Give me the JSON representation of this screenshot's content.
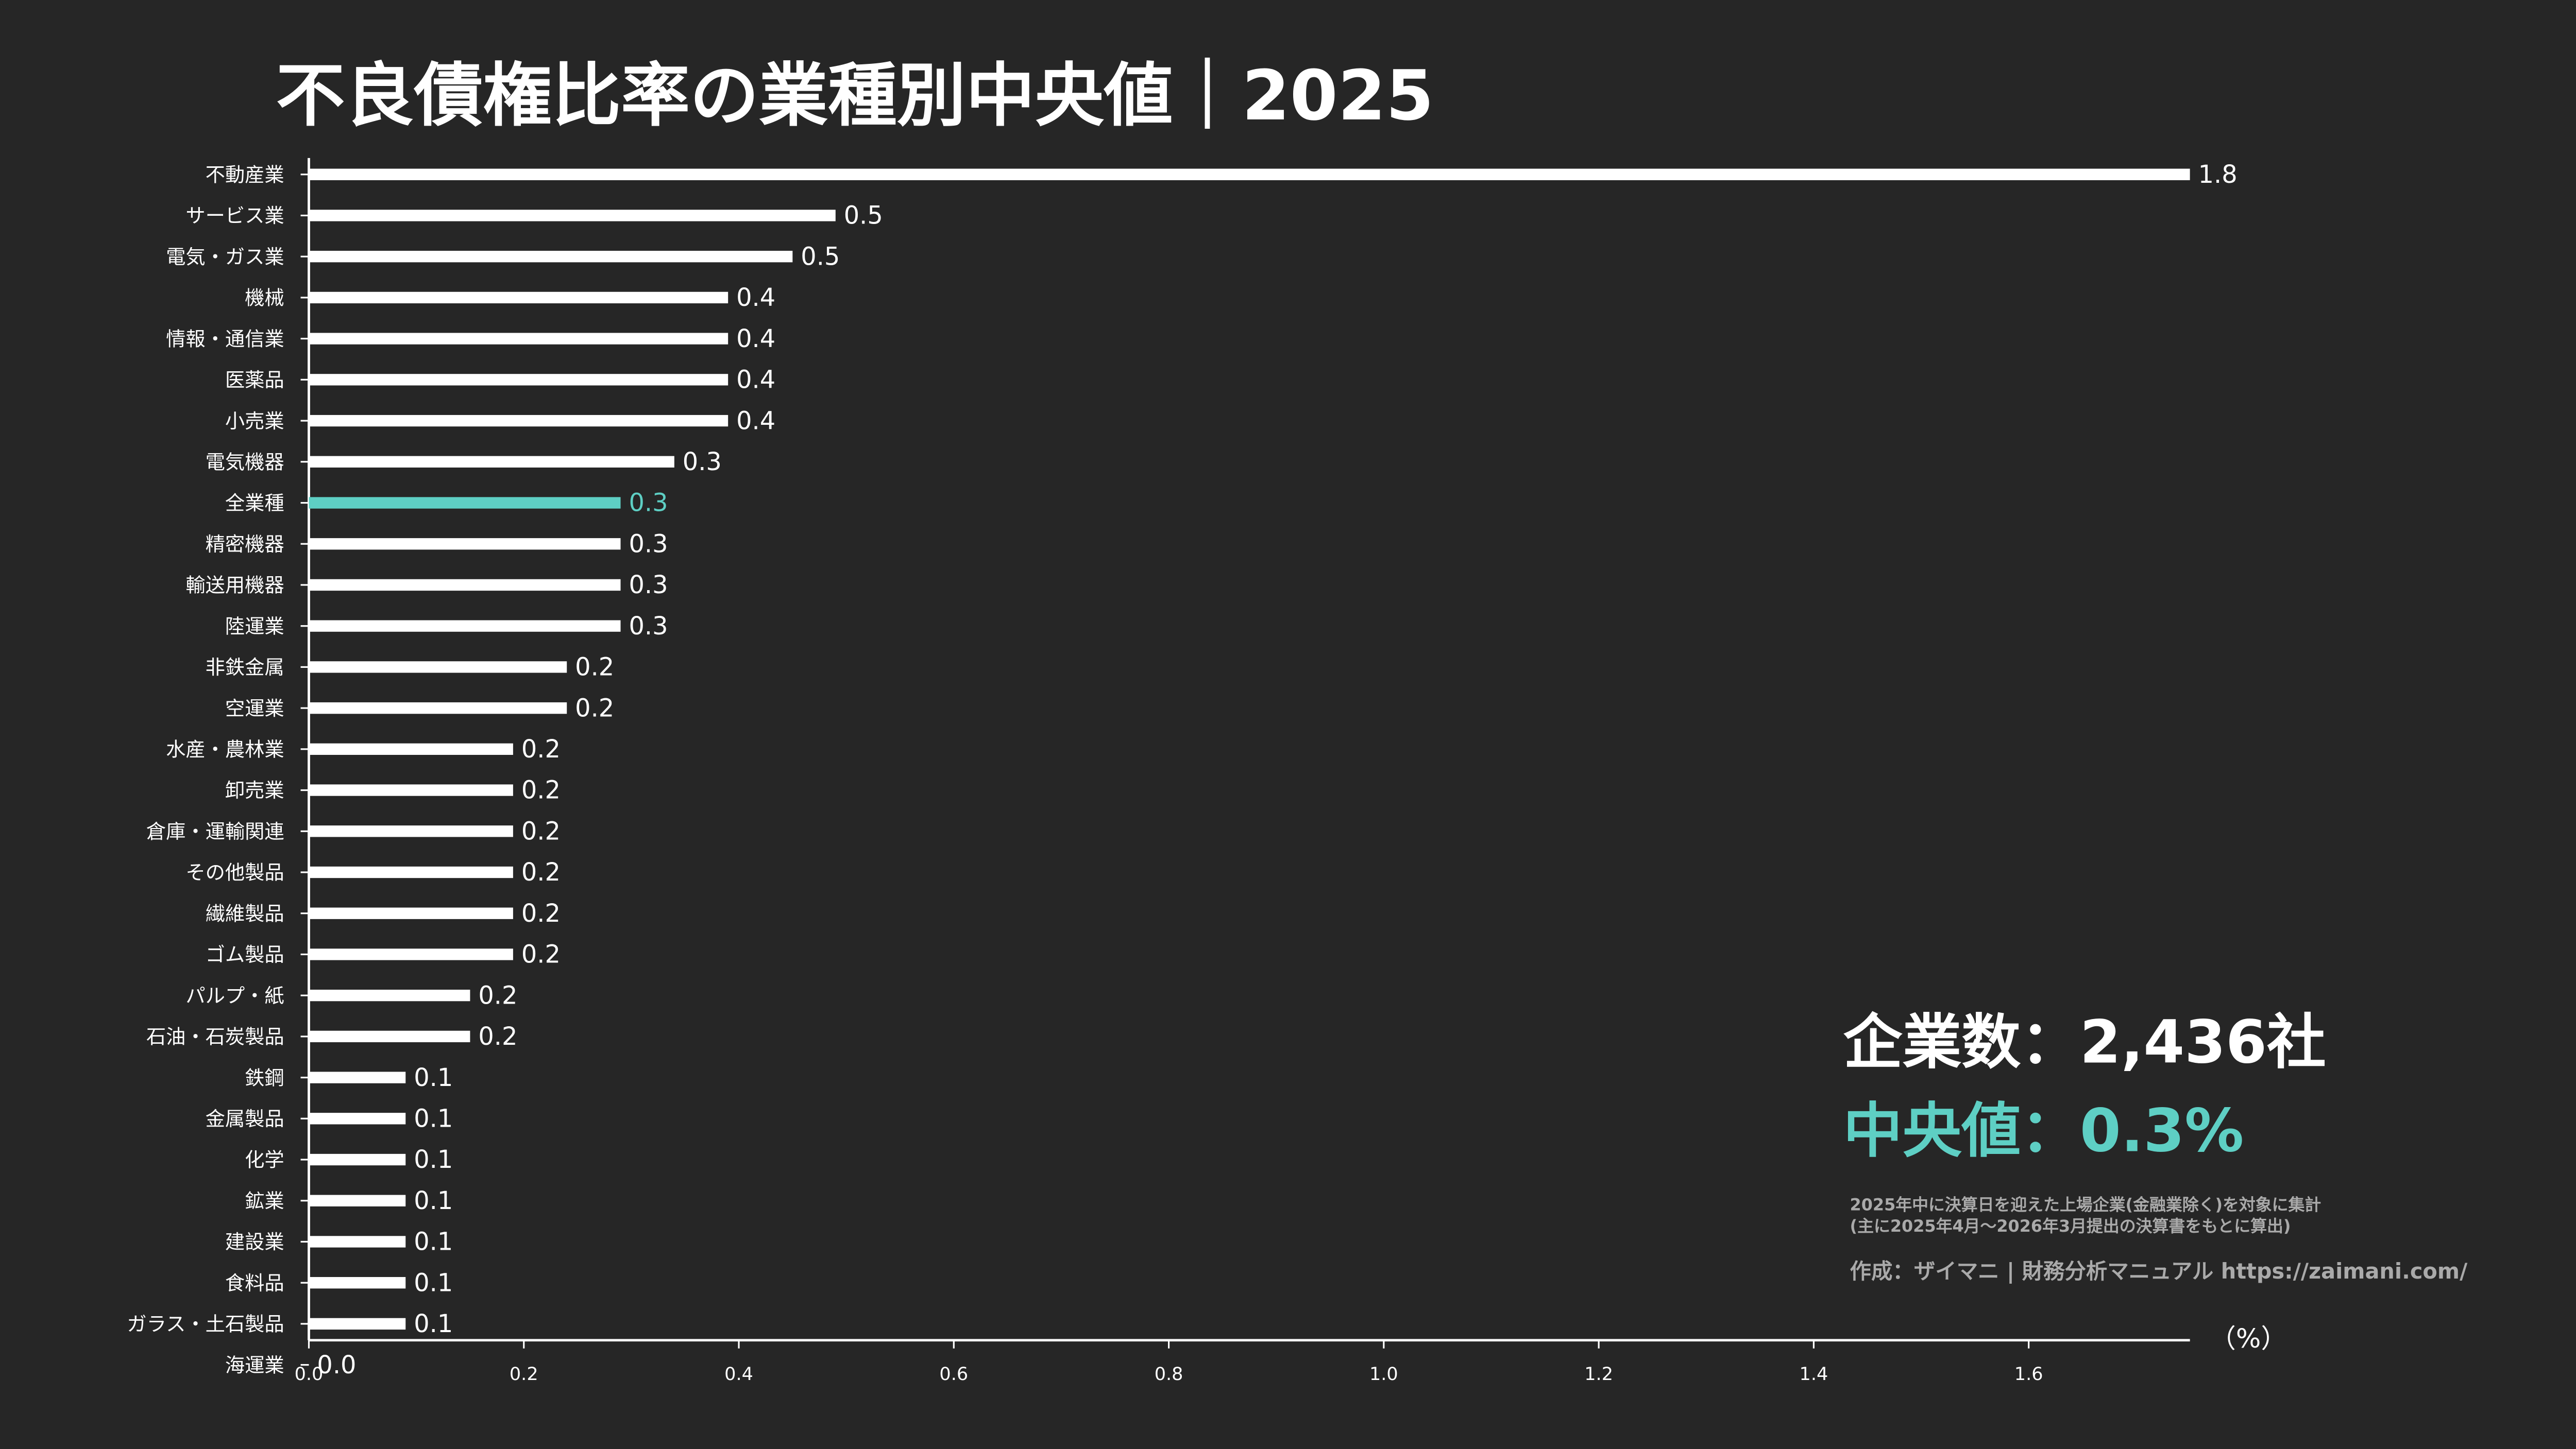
{
  "chart_data": {
    "type": "bar",
    "orientation": "horizontal",
    "title": "不良債権比率の業種別中央値｜2025",
    "x_label": "（%）",
    "categories": [
      "不動産業",
      "サービス業",
      "電気・ガス業",
      "機械",
      "情報・通信業",
      "医薬品",
      "小売業",
      "電気機器",
      "全業種",
      "精密機器",
      "輸送用機器",
      "陸運業",
      "非鉄金属",
      "空運業",
      "水産・農林業",
      "卸売業",
      "倉庫・運輸関連",
      "その他製品",
      "繊維製品",
      "ゴム製品",
      "パルプ・紙",
      "石油・石炭製品",
      "鉄鋼",
      "金属製品",
      "化学",
      "鉱業",
      "建設業",
      "食料品",
      "ガラス・土石製品",
      "海運業"
    ],
    "values": [
      1.75,
      0.49,
      0.45,
      0.39,
      0.39,
      0.39,
      0.39,
      0.34,
      0.29,
      0.29,
      0.29,
      0.29,
      0.24,
      0.24,
      0.19,
      0.19,
      0.19,
      0.19,
      0.19,
      0.19,
      0.15,
      0.15,
      0.09,
      0.09,
      0.09,
      0.09,
      0.09,
      0.09,
      0.09,
      0
    ],
    "value_labels": [
      "1.8",
      "0.5",
      "0.5",
      "0.4",
      "0.4",
      "0.4",
      "0.4",
      "0.3",
      "0.3",
      "0.3",
      "0.3",
      "0.3",
      "0.2",
      "0.2",
      "0.2",
      "0.2",
      "0.2",
      "0.2",
      "0.2",
      "0.2",
      "0.2",
      "0.2",
      "0.1",
      "0.1",
      "0.1",
      "0.1",
      "0.1",
      "0.1",
      "0.1",
      "0.0"
    ],
    "color": "#ffffff",
    "highlight_color": "#5ecfc4",
    "highlight": [
      8
    ],
    "xlim": [
      0,
      1.75
    ],
    "xticks": [
      {
        "value": 0,
        "label": "0.0"
      },
      0.2,
      0.4,
      0.6,
      0.8,
      {
        "value": 1,
        "label": "1.0"
      },
      1.2,
      1.4,
      1.6
    ],
    "grid": false,
    "annotations": [
      "企業数：2,436社",
      "中央値：0.3%",
      "2025年中に決算日を迎えた上場企業(金融業除く)を対象に集計",
      "(主に2025年4月〜2026年3月提出の決算書をもとに算出)",
      "作成：ザイマニ | 財務分析マニュアル https://zaimani.com/"
    ]
  }
}
